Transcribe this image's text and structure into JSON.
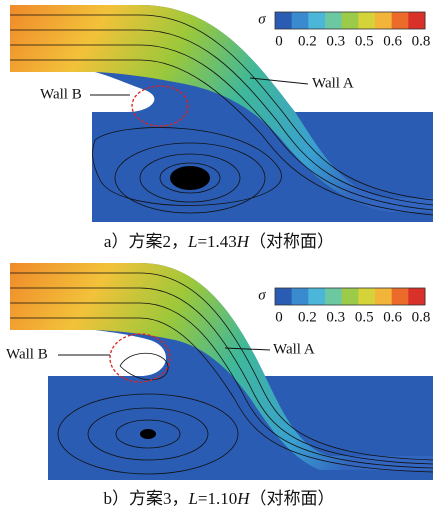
{
  "panels": [
    {
      "colorbar": {
        "symbol": "σ",
        "ticks": [
          "0",
          "0.2",
          "0.3",
          "0.5",
          "0.6",
          "0.8"
        ]
      },
      "wall_labels": [
        "Wall B",
        "Wall A"
      ],
      "caption": {
        "prefix": "a）方案2，",
        "var1": "L",
        "mid": "=1.43",
        "var2": "H",
        "suffix": "（对称面）"
      }
    },
    {
      "colorbar": {
        "symbol": "σ",
        "ticks": [
          "0",
          "0.2",
          "0.3",
          "0.5",
          "0.6",
          "0.8"
        ]
      },
      "wall_labels": [
        "Wall B",
        "Wall A"
      ],
      "caption": {
        "prefix": "b）方案3，",
        "var1": "L",
        "mid": "=1.10",
        "var2": "H",
        "suffix": "（对称面）"
      }
    }
  ]
}
